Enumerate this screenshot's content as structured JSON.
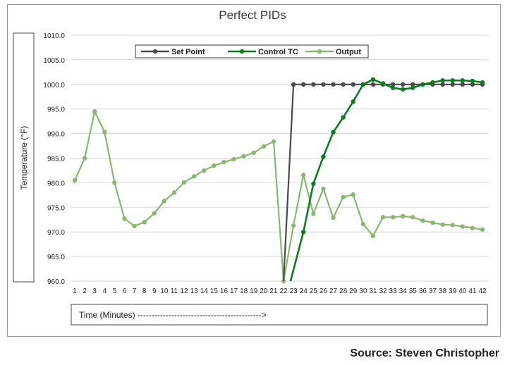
{
  "chart_data": {
    "type": "line",
    "title": "Perfect PIDs",
    "ylabel": "Temperature (°F)",
    "xlabel": "Time (Minutes) -------------------------------------------->",
    "ylim": [
      960,
      1010
    ],
    "ytick_step": 5,
    "categories": [
      1,
      2,
      3,
      4,
      5,
      6,
      7,
      8,
      9,
      10,
      11,
      12,
      13,
      14,
      15,
      16,
      17,
      18,
      19,
      20,
      21,
      22,
      23,
      24,
      25,
      26,
      27,
      28,
      29,
      30,
      31,
      32,
      33,
      34,
      35,
      36,
      37,
      38,
      39,
      40,
      41,
      42
    ],
    "grid": true,
    "legend_position": "top",
    "series": [
      {
        "name": "Set Point",
        "color": "#4a4a4a",
        "x": [
          22,
          23,
          24,
          25,
          26,
          27,
          28,
          29,
          30,
          31,
          32,
          33,
          34,
          35,
          36,
          37,
          38,
          39,
          40,
          41,
          42
        ],
        "values": [
          960,
          1000,
          1000,
          1000,
          1000,
          1000,
          1000,
          1000,
          1000,
          1000,
          1000,
          1000,
          1000,
          1000,
          1000,
          1000,
          1000,
          1000,
          1000,
          1000,
          1000
        ],
        "markers_from": 23
      },
      {
        "name": "Control TC",
        "color": "#0e7a23",
        "x": [
          22.7,
          24,
          25,
          26,
          27,
          28,
          29,
          30,
          31,
          32,
          33,
          34,
          35,
          36,
          37,
          38,
          39,
          40,
          41,
          42
        ],
        "values": [
          960,
          970,
          979.8,
          985.3,
          990.3,
          993.3,
          996.5,
          1000,
          1001,
          1000.2,
          999.3,
          999,
          999.3,
          1000,
          1000.4,
          1000.8,
          1000.8,
          1000.8,
          1000.7,
          1000.4
        ],
        "markers_from": 24
      },
      {
        "name": "Output",
        "color": "#8cb573",
        "x": [
          1,
          2,
          3,
          4,
          5,
          6,
          7,
          8,
          9,
          10,
          11,
          12,
          13,
          14,
          15,
          16,
          17,
          18,
          19,
          20,
          21,
          22,
          23,
          24,
          25,
          26,
          27,
          28,
          29,
          30,
          31,
          32,
          33,
          34,
          35,
          36,
          37,
          38,
          39,
          40,
          41,
          42
        ],
        "values": [
          980.5,
          985,
          994.5,
          990.3,
          980,
          972.7,
          971.2,
          972,
          973.8,
          976.3,
          978,
          980.1,
          981.3,
          982.5,
          983.5,
          984.2,
          984.8,
          985.4,
          986.1,
          987.4,
          988.4,
          960,
          971.3,
          981.6,
          973.7,
          978.8,
          972.9,
          977.1,
          977.6,
          971.6,
          969.2,
          973,
          973,
          973.2,
          973,
          972.3,
          971.9,
          971.5,
          971.4,
          971.1,
          970.8,
          970.5
        ],
        "markers_from": 1
      }
    ]
  },
  "source_text": "Source: Steven Christopher"
}
